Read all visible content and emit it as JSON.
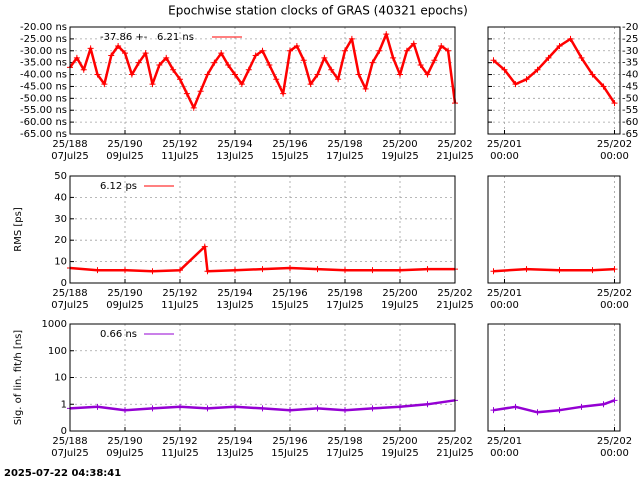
{
  "title": "Epochwise station clocks of GRAS (40321 epochs)",
  "timestamp": "2025-07-22 04:38:41",
  "chart_data": [
    {
      "type": "line",
      "xlim": [
        188,
        202
      ],
      "xticks": [
        {
          "value": 188,
          "label": "25/188",
          "date": "07Jul25"
        },
        {
          "value": 190,
          "label": "25/190",
          "date": "09Jul25"
        },
        {
          "value": 192,
          "label": "25/192",
          "date": "11Jul25"
        },
        {
          "value": 194,
          "label": "25/194",
          "date": "13Jul25"
        },
        {
          "value": 196,
          "label": "25/196",
          "date": "15Jul25"
        },
        {
          "value": 198,
          "label": "25/198",
          "date": "17Jul25"
        },
        {
          "value": 200,
          "label": "25/200",
          "date": "19Jul25"
        },
        {
          "value": 202,
          "label": "25/202",
          "date": "21Jul25"
        }
      ],
      "ylim": [
        -65,
        -20
      ],
      "yticks": [
        {
          "value": -20,
          "label": "-20.00 ns"
        },
        {
          "value": -25,
          "label": "-25.00 ns"
        },
        {
          "value": -30,
          "label": "-30.00 ns"
        },
        {
          "value": -35,
          "label": "-35.00 ns"
        },
        {
          "value": -40,
          "label": "-40.00 ns"
        },
        {
          "value": -45,
          "label": "-45.00 ns"
        },
        {
          "value": -50,
          "label": "-50.00 ns"
        },
        {
          "value": -55,
          "label": "-55.00 ns"
        },
        {
          "value": -60,
          "label": "-60.00 ns"
        },
        {
          "value": -65,
          "label": "-65.00 ns"
        }
      ],
      "grid": true,
      "x": [
        188,
        188.25,
        188.5,
        188.75,
        189,
        189.25,
        189.5,
        189.75,
        190,
        190.25,
        190.5,
        190.75,
        191,
        191.25,
        191.5,
        191.75,
        192,
        192.25,
        192.5,
        192.75,
        193,
        193.25,
        193.5,
        193.75,
        194,
        194.25,
        194.5,
        194.75,
        195,
        195.25,
        195.5,
        195.75,
        196,
        196.25,
        196.5,
        196.75,
        197,
        197.25,
        197.5,
        197.75,
        198,
        198.25,
        198.5,
        198.75,
        199,
        199.25,
        199.5,
        199.75,
        200,
        200.25,
        200.5,
        200.75,
        201,
        201.25,
        201.5,
        201.75,
        202
      ],
      "series": [
        {
          "name": "-37.86 +-   6.21 ns",
          "color": "#ff0000",
          "values": [
            -37,
            -33,
            -38,
            -29,
            -40,
            -44,
            -32,
            -28,
            -31,
            -40,
            -35,
            -31,
            -44,
            -36,
            -33,
            -38,
            -42,
            -48,
            -54,
            -47,
            -40,
            -35,
            -31,
            -36,
            -40,
            -44,
            -38,
            -32,
            -30,
            -36,
            -42,
            -48,
            -30,
            -28,
            -34,
            -44,
            -40,
            -33,
            -38,
            -42,
            -30,
            -25,
            -40,
            -46,
            -35,
            -30,
            -23,
            -33,
            -40,
            -30,
            -27,
            -36,
            -40,
            -34,
            -28,
            -30,
            -52
          ]
        }
      ]
    },
    {
      "type": "line",
      "xlim": [
        200.85,
        202.05
      ],
      "xticks": [
        {
          "value": 201,
          "label": "25/201",
          "date": "00:00"
        },
        {
          "value": 202,
          "label": "25/202",
          "date": "00:00"
        }
      ],
      "ylim": [
        -65,
        -20
      ],
      "yticks": [
        -20,
        -25,
        -30,
        -35,
        -40,
        -45,
        -50,
        -55,
        -60,
        -65
      ],
      "ytick_side": "right",
      "grid": true,
      "x": [
        200.9,
        201,
        201.1,
        201.2,
        201.3,
        201.4,
        201.5,
        201.6,
        201.7,
        201.8,
        201.9,
        202
      ],
      "series": [
        {
          "color": "#ff0000",
          "values": [
            -34,
            -38,
            -44,
            -42,
            -38,
            -33,
            -28,
            -25,
            -33,
            -40,
            -45,
            -52
          ]
        }
      ]
    },
    {
      "type": "line",
      "ylabel": "RMS [ps]",
      "xlim": [
        188,
        202
      ],
      "xticks": [
        {
          "value": 188,
          "label": "25/188",
          "date": "07Jul25"
        },
        {
          "value": 190,
          "label": "25/190",
          "date": "09Jul25"
        },
        {
          "value": 192,
          "label": "25/192",
          "date": "11Jul25"
        },
        {
          "value": 194,
          "label": "25/194",
          "date": "13Jul25"
        },
        {
          "value": 196,
          "label": "25/196",
          "date": "15Jul25"
        },
        {
          "value": 198,
          "label": "25/198",
          "date": "17Jul25"
        },
        {
          "value": 200,
          "label": "25/200",
          "date": "19Jul25"
        },
        {
          "value": 202,
          "label": "25/202",
          "date": "21Jul25"
        }
      ],
      "ylim": [
        0,
        50
      ],
      "yticks": [
        0,
        10,
        20,
        30,
        40,
        50
      ],
      "grid": true,
      "x": [
        188,
        189,
        190,
        191,
        192,
        192.9,
        193,
        194,
        195,
        196,
        197,
        198,
        199,
        200,
        201,
        202
      ],
      "series": [
        {
          "name": "6.12 ps",
          "color": "#ff0000",
          "values": [
            7,
            6,
            6,
            5.5,
            6,
            17,
            5.5,
            6,
            6.5,
            7,
            6.5,
            6,
            6,
            6,
            6.5,
            6.5
          ]
        }
      ]
    },
    {
      "type": "line",
      "xlim": [
        200.85,
        202.05
      ],
      "xticks": [
        {
          "value": 201,
          "label": "25/201",
          "date": "00:00"
        },
        {
          "value": 202,
          "label": "25/202",
          "date": "00:00"
        }
      ],
      "ylim": [
        0,
        50
      ],
      "grid": true,
      "x": [
        200.9,
        201.2,
        201.5,
        201.8,
        202
      ],
      "series": [
        {
          "color": "#ff0000",
          "values": [
            5.5,
            6.5,
            6,
            6,
            6.5
          ]
        }
      ]
    },
    {
      "type": "line",
      "ylabel": "Sig. of lin. fit/h [ns]",
      "log_scale": true,
      "xlim": [
        188,
        202
      ],
      "xticks": [
        {
          "value": 188,
          "label": "25/188",
          "date": "07Jul25"
        },
        {
          "value": 190,
          "label": "25/190",
          "date": "09Jul25"
        },
        {
          "value": 192,
          "label": "25/192",
          "date": "11Jul25"
        },
        {
          "value": 194,
          "label": "25/194",
          "date": "13Jul25"
        },
        {
          "value": 196,
          "label": "25/196",
          "date": "15Jul25"
        },
        {
          "value": 198,
          "label": "25/198",
          "date": "17Jul25"
        },
        {
          "value": 200,
          "label": "25/200",
          "date": "19Jul25"
        },
        {
          "value": 202,
          "label": "25/202",
          "date": "21Jul25"
        }
      ],
      "ylim": [
        0.1,
        1000
      ],
      "yticks": [
        1000,
        100,
        10,
        1,
        {
          "value": 0.1,
          "label": "0"
        }
      ],
      "grid": true,
      "x": [
        188,
        189,
        190,
        191,
        192,
        193,
        194,
        195,
        196,
        197,
        198,
        199,
        200,
        201,
        202
      ],
      "series": [
        {
          "name": "0.66 ns",
          "color": "#9400d3",
          "values": [
            0.7,
            0.8,
            0.6,
            0.7,
            0.8,
            0.7,
            0.8,
            0.7,
            0.6,
            0.7,
            0.6,
            0.7,
            0.8,
            1.0,
            1.4
          ]
        }
      ]
    },
    {
      "type": "line",
      "log_scale": true,
      "xlim": [
        200.85,
        202.05
      ],
      "xticks": [
        {
          "value": 201,
          "label": "25/201",
          "date": "00:00"
        },
        {
          "value": 202,
          "label": "25/202",
          "date": "00:00"
        }
      ],
      "ylim": [
        0.1,
        1000
      ],
      "grid": true,
      "x": [
        200.9,
        201.1,
        201.3,
        201.5,
        201.7,
        201.9,
        202
      ],
      "series": [
        {
          "color": "#9400d3",
          "values": [
            0.6,
            0.8,
            0.5,
            0.6,
            0.8,
            1.0,
            1.4
          ]
        }
      ]
    }
  ]
}
